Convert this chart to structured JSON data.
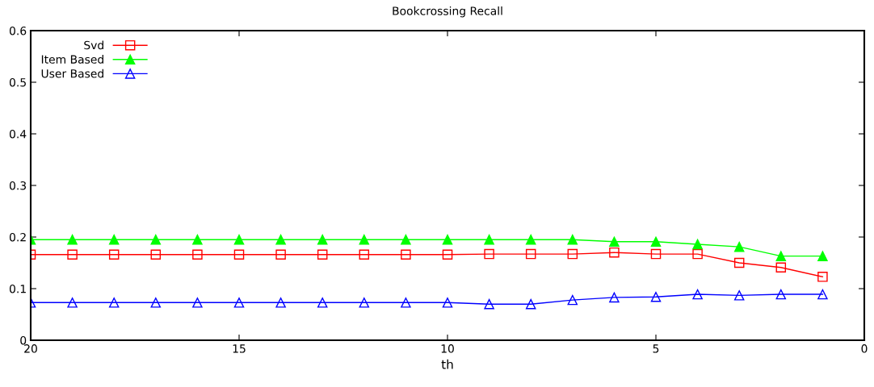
{
  "chart_data": {
    "type": "line",
    "title": "Bookcrossing Recall",
    "xlabel": "th",
    "x": [
      20,
      19,
      18,
      17,
      16,
      15,
      14,
      13,
      12,
      11,
      10,
      9,
      8,
      7,
      6,
      5,
      4,
      3,
      2,
      1
    ],
    "series": [
      {
        "name": "Svd",
        "color": "#ff0000",
        "marker": "square",
        "values": [
          0.166,
          0.166,
          0.166,
          0.166,
          0.166,
          0.166,
          0.166,
          0.166,
          0.166,
          0.166,
          0.166,
          0.167,
          0.167,
          0.167,
          0.17,
          0.167,
          0.167,
          0.15,
          0.141,
          0.123
        ]
      },
      {
        "name": "Item Based",
        "color": "#00ff00",
        "marker": "triangle_filled",
        "values": [
          0.195,
          0.195,
          0.195,
          0.195,
          0.195,
          0.195,
          0.195,
          0.195,
          0.195,
          0.195,
          0.195,
          0.195,
          0.195,
          0.195,
          0.191,
          0.191,
          0.186,
          0.181,
          0.163,
          0.163
        ]
      },
      {
        "name": "User Based",
        "color": "#0000ff",
        "marker": "triangle",
        "values": [
          0.073,
          0.073,
          0.073,
          0.073,
          0.073,
          0.073,
          0.073,
          0.073,
          0.073,
          0.073,
          0.073,
          0.07,
          0.07,
          0.078,
          0.083,
          0.084,
          0.089,
          0.087,
          0.089,
          0.089
        ]
      }
    ],
    "xlim": [
      20,
      0
    ],
    "xticks": [
      20,
      15,
      10,
      5,
      0
    ],
    "ylim": [
      0,
      0.6
    ],
    "yticks": [
      0,
      0.1,
      0.2,
      0.3,
      0.4,
      0.5,
      0.6
    ],
    "grid": false,
    "legend": "top left",
    "line_style": "solid"
  }
}
